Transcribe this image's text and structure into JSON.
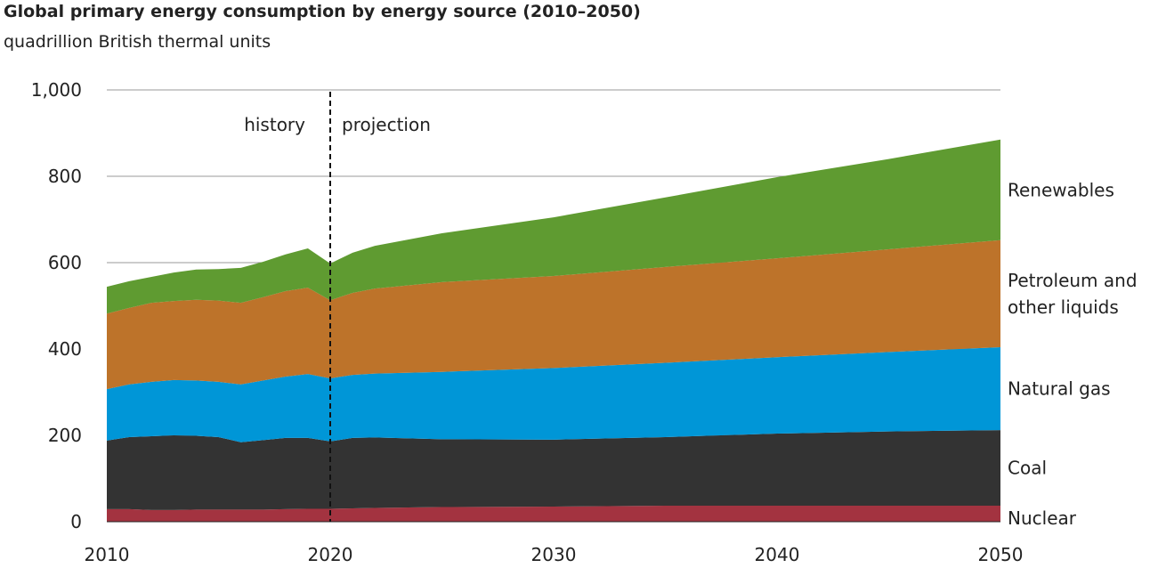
{
  "chart_data": {
    "type": "area",
    "stacked": true,
    "title": "Global primary energy consumption by energy source (2010–2050)",
    "subtitle": "quadrillion British thermal units",
    "xlabel": "",
    "ylabel": "",
    "xlim": [
      2010,
      2050
    ],
    "ylim": [
      0,
      1000
    ],
    "x_ticks": [
      "2010",
      "2020",
      "2030",
      "2040",
      "2050"
    ],
    "y_ticks": [
      "0",
      "200",
      "400",
      "600",
      "800",
      "1,000"
    ],
    "grid": "horizontal",
    "legend": "labels at right end of areas",
    "annotations": {
      "divider_year": 2020,
      "left": "history",
      "right": "projection"
    },
    "x": [
      2010,
      2011,
      2012,
      2013,
      2014,
      2015,
      2016,
      2017,
      2018,
      2019,
      2020,
      2021,
      2022,
      2025,
      2030,
      2035,
      2040,
      2045,
      2050
    ],
    "series": [
      {
        "name": "Nuclear",
        "color": "#a33340",
        "values": [
          29,
          29,
          27,
          27,
          28,
          28,
          28,
          28,
          29,
          30,
          30,
          31,
          32,
          34,
          35,
          37,
          37,
          37,
          37
        ]
      },
      {
        "name": "Coal",
        "color": "#333333",
        "values": [
          159,
          167,
          171,
          173,
          171,
          168,
          156,
          161,
          165,
          164,
          156,
          163,
          163,
          157,
          155,
          159,
          167,
          172,
          175
        ]
      },
      {
        "name": "Natural gas",
        "color": "#0096d7",
        "values": [
          119,
          122,
          126,
          128,
          128,
          128,
          134,
          138,
          142,
          148,
          146,
          146,
          148,
          156,
          166,
          172,
          177,
          184,
          192
        ]
      },
      {
        "name": "Petroleum and other liquids",
        "label_lines": [
          "Petroleum and",
          "other liquids"
        ],
        "color": "#bd732a",
        "values": [
          175,
          177,
          183,
          183,
          187,
          188,
          189,
          193,
          198,
          200,
          181,
          190,
          197,
          208,
          213,
          222,
          229,
          238,
          248
        ]
      },
      {
        "name": "Renewables",
        "color": "#5f9b31",
        "values": [
          62,
          62,
          60,
          66,
          70,
          73,
          81,
          82,
          85,
          91,
          85,
          93,
          99,
          113,
          136,
          161,
          188,
          209,
          233
        ]
      }
    ]
  }
}
